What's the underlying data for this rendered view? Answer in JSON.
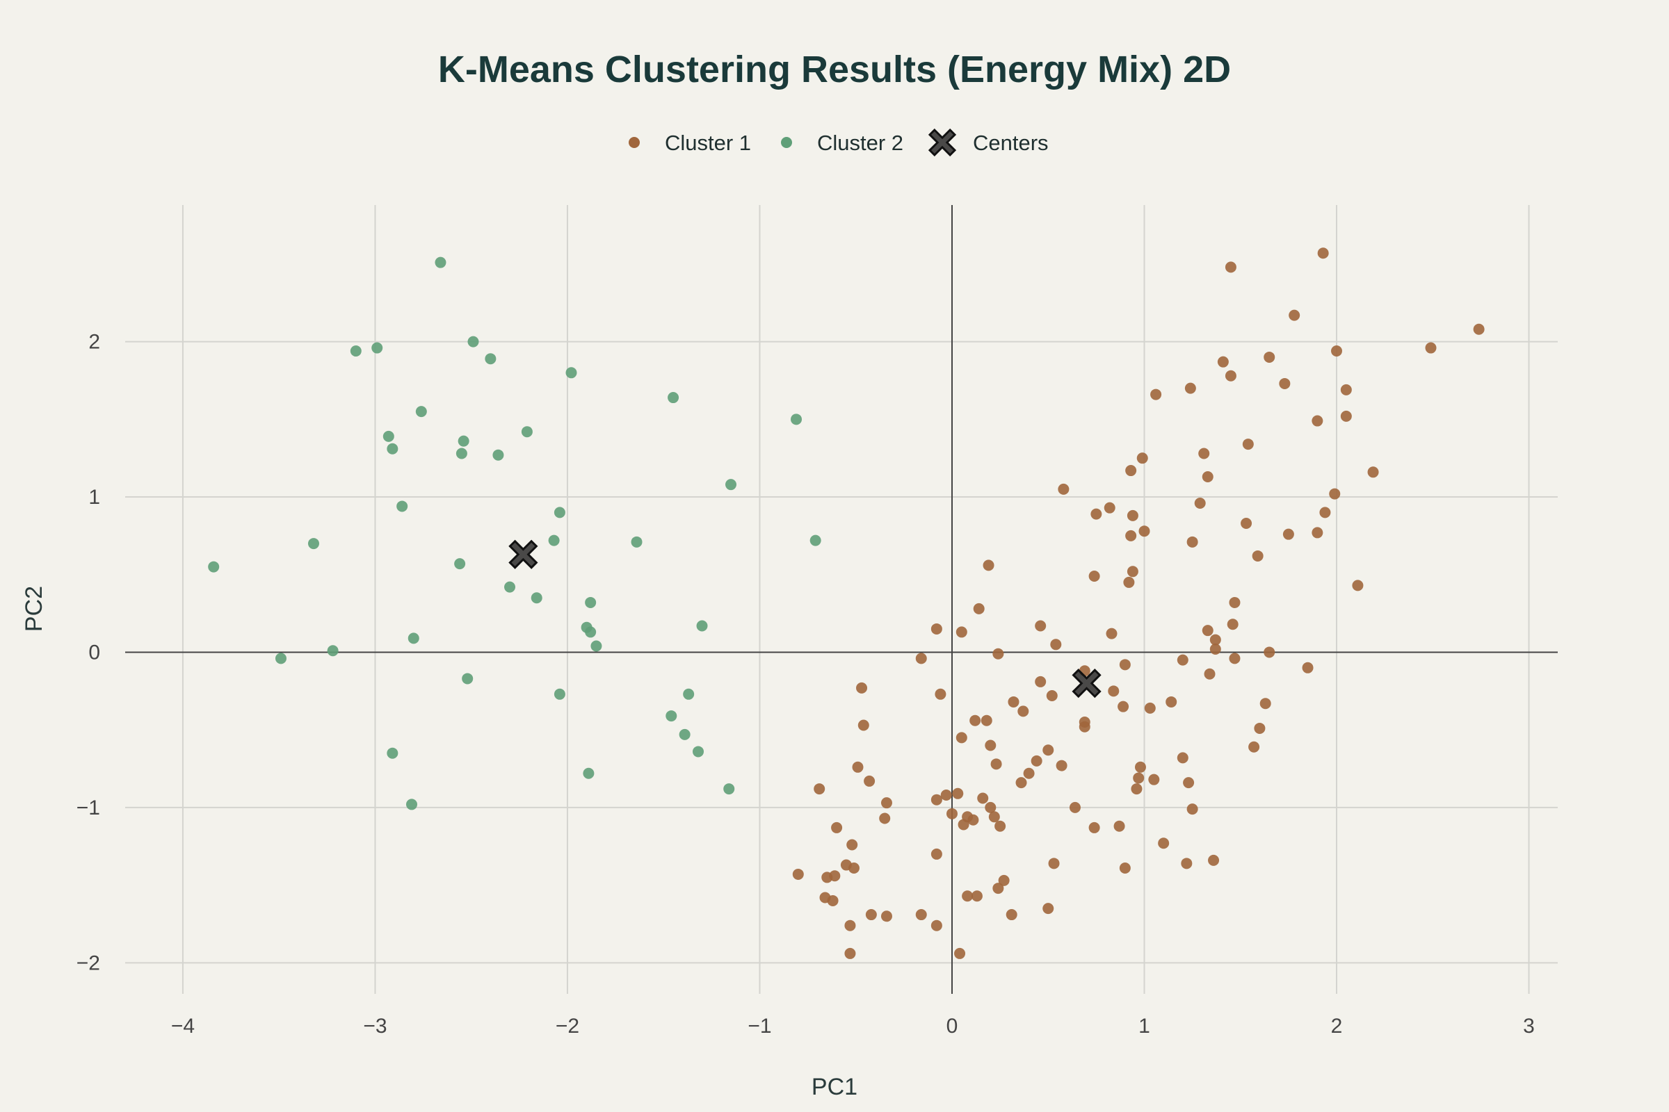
{
  "chart_data": {
    "type": "scatter",
    "title": "K-Means Clustering Results (Energy Mix) 2D",
    "xlabel": "PC1",
    "ylabel": "PC2",
    "xlim": [
      -4.3,
      3.15
    ],
    "ylim": [
      -2.2,
      2.88
    ],
    "xticks": [
      -4,
      -3,
      -2,
      -1,
      0,
      1,
      2,
      3
    ],
    "yticks": [
      -2,
      -1,
      0,
      1,
      2
    ],
    "grid": true,
    "legend_position": "top-center",
    "colors": {
      "cluster1": "#a0663c",
      "cluster2": "#5f9f78",
      "centers": "#2b2b2b",
      "title": "#1a3a3a",
      "axis_text": "#444444",
      "grid": "#d4d4cf",
      "zeroline": "#444444",
      "background": "#f3f2ec"
    },
    "series": [
      {
        "name": "Cluster 1",
        "marker": "circle",
        "points": [
          [
            1.45,
            2.48
          ],
          [
            1.93,
            2.57
          ],
          [
            1.78,
            2.17
          ],
          [
            2.74,
            2.08
          ],
          [
            2.49,
            1.96
          ],
          [
            2.0,
            1.94
          ],
          [
            1.41,
            1.87
          ],
          [
            1.65,
            1.9
          ],
          [
            1.45,
            1.78
          ],
          [
            1.73,
            1.73
          ],
          [
            1.24,
            1.7
          ],
          [
            2.05,
            1.69
          ],
          [
            1.06,
            1.66
          ],
          [
            1.9,
            1.49
          ],
          [
            2.05,
            1.52
          ],
          [
            1.54,
            1.34
          ],
          [
            1.31,
            1.28
          ],
          [
            0.99,
            1.25
          ],
          [
            0.93,
            1.17
          ],
          [
            2.19,
            1.16
          ],
          [
            1.33,
            1.13
          ],
          [
            0.58,
            1.05
          ],
          [
            1.99,
            1.02
          ],
          [
            1.29,
            0.96
          ],
          [
            0.82,
            0.93
          ],
          [
            0.75,
            0.89
          ],
          [
            0.94,
            0.88
          ],
          [
            1.94,
            0.9
          ],
          [
            1.53,
            0.83
          ],
          [
            1.0,
            0.78
          ],
          [
            1.75,
            0.76
          ],
          [
            1.9,
            0.77
          ],
          [
            0.93,
            0.75
          ],
          [
            1.25,
            0.71
          ],
          [
            1.59,
            0.62
          ],
          [
            0.19,
            0.56
          ],
          [
            0.94,
            0.52
          ],
          [
            0.74,
            0.49
          ],
          [
            0.92,
            0.45
          ],
          [
            2.11,
            0.43
          ],
          [
            1.47,
            0.32
          ],
          [
            0.14,
            0.28
          ],
          [
            1.46,
            0.18
          ],
          [
            0.46,
            0.17
          ],
          [
            -0.08,
            0.15
          ],
          [
            0.05,
            0.13
          ],
          [
            0.83,
            0.12
          ],
          [
            1.33,
            0.14
          ],
          [
            1.37,
            0.08
          ],
          [
            0.54,
            0.05
          ],
          [
            1.37,
            0.02
          ],
          [
            1.65,
            0.0
          ],
          [
            0.24,
            -0.01
          ],
          [
            -0.16,
            -0.04
          ],
          [
            1.2,
            -0.05
          ],
          [
            1.47,
            -0.04
          ],
          [
            0.9,
            -0.08
          ],
          [
            1.85,
            -0.1
          ],
          [
            0.69,
            -0.12
          ],
          [
            1.34,
            -0.14
          ],
          [
            0.46,
            -0.19
          ],
          [
            -0.47,
            -0.23
          ],
          [
            0.84,
            -0.25
          ],
          [
            -0.06,
            -0.27
          ],
          [
            0.52,
            -0.28
          ],
          [
            0.32,
            -0.32
          ],
          [
            1.14,
            -0.32
          ],
          [
            1.63,
            -0.33
          ],
          [
            0.89,
            -0.35
          ],
          [
            1.03,
            -0.36
          ],
          [
            0.37,
            -0.38
          ],
          [
            0.12,
            -0.44
          ],
          [
            0.18,
            -0.44
          ],
          [
            0.69,
            -0.45
          ],
          [
            -0.46,
            -0.47
          ],
          [
            0.69,
            -0.48
          ],
          [
            1.6,
            -0.49
          ],
          [
            0.05,
            -0.55
          ],
          [
            0.2,
            -0.6
          ],
          [
            1.57,
            -0.61
          ],
          [
            0.5,
            -0.63
          ],
          [
            1.2,
            -0.68
          ],
          [
            0.44,
            -0.7
          ],
          [
            0.23,
            -0.72
          ],
          [
            0.57,
            -0.73
          ],
          [
            -0.49,
            -0.74
          ],
          [
            0.98,
            -0.74
          ],
          [
            0.4,
            -0.78
          ],
          [
            0.97,
            -0.81
          ],
          [
            1.05,
            -0.82
          ],
          [
            -0.43,
            -0.83
          ],
          [
            0.36,
            -0.84
          ],
          [
            1.23,
            -0.84
          ],
          [
            -0.69,
            -0.88
          ],
          [
            0.96,
            -0.88
          ],
          [
            0.03,
            -0.91
          ],
          [
            -0.03,
            -0.92
          ],
          [
            0.16,
            -0.94
          ],
          [
            -0.08,
            -0.95
          ],
          [
            -0.34,
            -0.97
          ],
          [
            0.2,
            -1.0
          ],
          [
            0.64,
            -1.0
          ],
          [
            1.25,
            -1.01
          ],
          [
            0.0,
            -1.04
          ],
          [
            0.22,
            -1.06
          ],
          [
            0.08,
            -1.06
          ],
          [
            -0.35,
            -1.07
          ],
          [
            0.11,
            -1.08
          ],
          [
            0.06,
            -1.11
          ],
          [
            0.25,
            -1.12
          ],
          [
            0.87,
            -1.12
          ],
          [
            0.74,
            -1.13
          ],
          [
            -0.6,
            -1.13
          ],
          [
            1.1,
            -1.23
          ],
          [
            -0.52,
            -1.24
          ],
          [
            -0.08,
            -1.3
          ],
          [
            0.53,
            -1.36
          ],
          [
            1.22,
            -1.36
          ],
          [
            1.36,
            -1.34
          ],
          [
            -0.55,
            -1.37
          ],
          [
            -0.51,
            -1.39
          ],
          [
            0.9,
            -1.39
          ],
          [
            -0.8,
            -1.43
          ],
          [
            -0.61,
            -1.44
          ],
          [
            -0.65,
            -1.45
          ],
          [
            0.27,
            -1.47
          ],
          [
            0.24,
            -1.52
          ],
          [
            0.08,
            -1.57
          ],
          [
            0.13,
            -1.57
          ],
          [
            -0.66,
            -1.58
          ],
          [
            -0.62,
            -1.6
          ],
          [
            0.5,
            -1.65
          ],
          [
            -0.42,
            -1.69
          ],
          [
            -0.34,
            -1.7
          ],
          [
            -0.16,
            -1.69
          ],
          [
            0.31,
            -1.69
          ],
          [
            -0.08,
            -1.76
          ],
          [
            -0.53,
            -1.76
          ],
          [
            -0.53,
            -1.94
          ],
          [
            0.04,
            -1.94
          ]
        ]
      },
      {
        "name": "Cluster 2",
        "marker": "circle",
        "points": [
          [
            -2.66,
            2.51
          ],
          [
            -2.49,
            2.0
          ],
          [
            -2.99,
            1.96
          ],
          [
            -3.1,
            1.94
          ],
          [
            -2.4,
            1.89
          ],
          [
            -1.98,
            1.8
          ],
          [
            -1.45,
            1.64
          ],
          [
            -2.76,
            1.55
          ],
          [
            -0.81,
            1.5
          ],
          [
            -2.21,
            1.42
          ],
          [
            -2.93,
            1.39
          ],
          [
            -2.54,
            1.36
          ],
          [
            -2.91,
            1.31
          ],
          [
            -2.55,
            1.28
          ],
          [
            -2.36,
            1.27
          ],
          [
            -1.15,
            1.08
          ],
          [
            -2.86,
            0.94
          ],
          [
            -2.04,
            0.9
          ],
          [
            -2.07,
            0.72
          ],
          [
            -1.64,
            0.71
          ],
          [
            -0.71,
            0.72
          ],
          [
            -3.32,
            0.7
          ],
          [
            -2.56,
            0.57
          ],
          [
            -3.84,
            0.55
          ],
          [
            -2.3,
            0.42
          ],
          [
            -2.16,
            0.35
          ],
          [
            -1.88,
            0.32
          ],
          [
            -1.3,
            0.17
          ],
          [
            -1.9,
            0.16
          ],
          [
            -1.88,
            0.13
          ],
          [
            -2.8,
            0.09
          ],
          [
            -1.85,
            0.04
          ],
          [
            -3.22,
            0.01
          ],
          [
            -3.49,
            -0.04
          ],
          [
            -2.52,
            -0.17
          ],
          [
            -1.37,
            -0.27
          ],
          [
            -2.04,
            -0.27
          ],
          [
            -1.46,
            -0.41
          ],
          [
            -1.39,
            -0.53
          ],
          [
            -2.91,
            -0.65
          ],
          [
            -1.32,
            -0.64
          ],
          [
            -1.89,
            -0.78
          ],
          [
            -1.16,
            -0.88
          ],
          [
            -2.81,
            -0.98
          ]
        ]
      },
      {
        "name": "Centers",
        "marker": "x",
        "points": [
          [
            -2.23,
            0.63
          ],
          [
            0.7,
            -0.2
          ]
        ]
      }
    ]
  }
}
